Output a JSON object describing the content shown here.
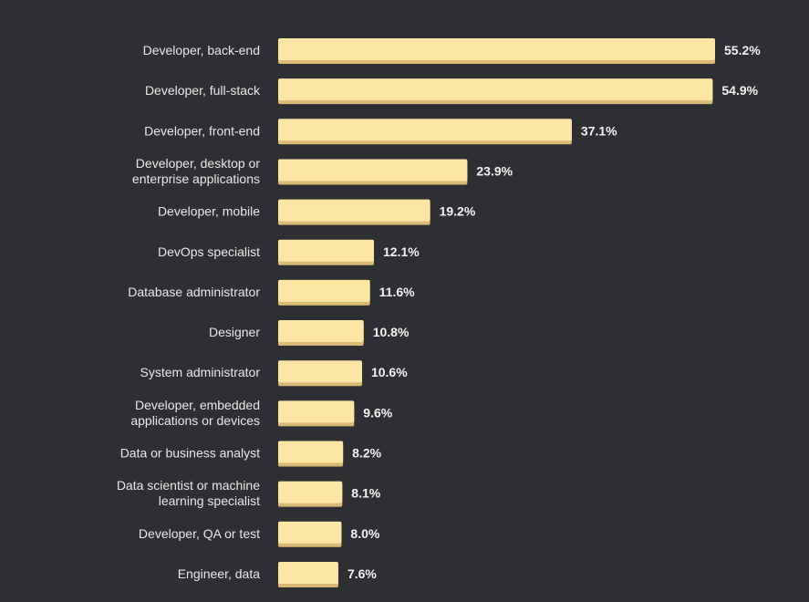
{
  "chart_data": {
    "type": "bar",
    "orientation": "horizontal",
    "categories": [
      "Developer, back-end",
      "Developer, full-stack",
      "Developer, front-end",
      "Developer, desktop or enterprise applications",
      "Developer, mobile",
      "DevOps specialist",
      "Database administrator",
      "Designer",
      "System administrator",
      "Developer, embedded applications or devices",
      "Data or business analyst",
      "Data scientist or machine learning specialist",
      "Developer, QA or test",
      "Engineer, data"
    ],
    "category_lines": [
      [
        "Developer, back-end"
      ],
      [
        "Developer, full-stack"
      ],
      [
        "Developer, front-end"
      ],
      [
        "Developer, desktop or",
        "enterprise applications"
      ],
      [
        "Developer, mobile"
      ],
      [
        "DevOps specialist"
      ],
      [
        "Database administrator"
      ],
      [
        "Designer"
      ],
      [
        "System administrator"
      ],
      [
        "Developer, embedded",
        "applications or devices"
      ],
      [
        "Data or business analyst"
      ],
      [
        "Data scientist or machine",
        "learning specialist"
      ],
      [
        "Developer, QA or test"
      ],
      [
        "Engineer, data"
      ]
    ],
    "values": [
      55.2,
      54.9,
      37.1,
      23.9,
      19.2,
      12.1,
      11.6,
      10.8,
      10.6,
      9.6,
      8.2,
      8.1,
      8.0,
      7.6
    ],
    "value_labels": [
      "55.2%",
      "54.9%",
      "37.1%",
      "23.9%",
      "19.2%",
      "12.1%",
      "11.6%",
      "10.8%",
      "10.6%",
      "9.6%",
      "8.2%",
      "8.1%",
      "8.0%",
      "7.6%"
    ],
    "unit": "%",
    "xlim": [
      0,
      55.2
    ],
    "grid": false,
    "legend": "none",
    "colors": {
      "background": "#2d2f33",
      "bar": "#fde6a3",
      "bar_shadow": "#d9b974",
      "label": "#e8e8e8",
      "value_label": "#f2f2f2"
    }
  }
}
